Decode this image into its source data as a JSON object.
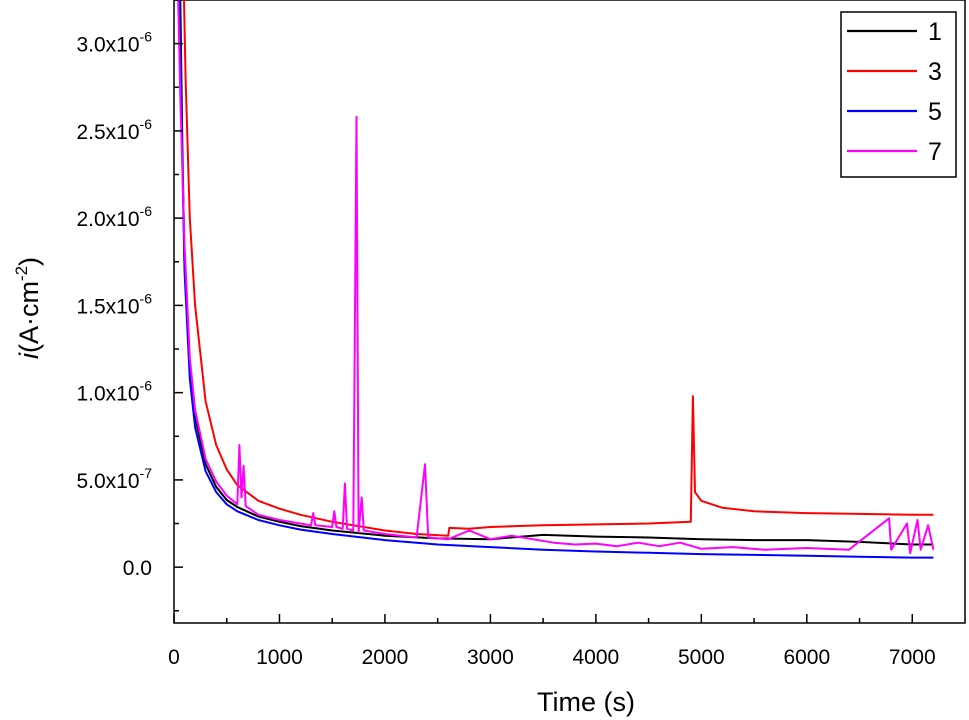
{
  "chart_data": {
    "type": "line",
    "xlabel": "Time (s)",
    "ylabel": {
      "italic": "i",
      "main": "(A·cm",
      "sup": "-2",
      "tail": ")"
    },
    "xlim": [
      0,
      7500
    ],
    "ylim": [
      -3.2e-07,
      3.25e-06
    ],
    "grid": false,
    "legend_position": "top-right",
    "x_ticks": [
      {
        "value": 0,
        "label": "0"
      },
      {
        "value": 1000,
        "label": "1000"
      },
      {
        "value": 2000,
        "label": "2000"
      },
      {
        "value": 3000,
        "label": "3000"
      },
      {
        "value": 4000,
        "label": "4000"
      },
      {
        "value": 5000,
        "label": "5000"
      },
      {
        "value": 6000,
        "label": "6000"
      },
      {
        "value": 7000,
        "label": "7000"
      }
    ],
    "y_ticks": [
      {
        "value": 0,
        "mant": "0.0",
        "exp": ""
      },
      {
        "value": 5e-07,
        "mant": "5.0x10",
        "exp": "-7"
      },
      {
        "value": 1e-06,
        "mant": "1.0x10",
        "exp": "-6"
      },
      {
        "value": 1.5e-06,
        "mant": "1.5x10",
        "exp": "-6"
      },
      {
        "value": 2e-06,
        "mant": "2.0x10",
        "exp": "-6"
      },
      {
        "value": 2.5e-06,
        "mant": "2.5x10",
        "exp": "-6"
      },
      {
        "value": 3e-06,
        "mant": "3.0x10",
        "exp": "-6"
      }
    ],
    "series": [
      {
        "name": "1",
        "color": "#000000",
        "points": [
          [
            60,
            3.25e-06
          ],
          [
            80,
            2.4e-06
          ],
          [
            100,
            1.75e-06
          ],
          [
            150,
            1.15e-06
          ],
          [
            200,
            8.6e-07
          ],
          [
            300,
            5.9e-07
          ],
          [
            400,
            4.6e-07
          ],
          [
            500,
            3.85e-07
          ],
          [
            600,
            3.45e-07
          ],
          [
            800,
            2.9e-07
          ],
          [
            1000,
            2.6e-07
          ],
          [
            1200,
            2.35e-07
          ],
          [
            1500,
            2.1e-07
          ],
          [
            2000,
            1.8e-07
          ],
          [
            2500,
            1.65e-07
          ],
          [
            3000,
            1.6e-07
          ],
          [
            3500,
            1.85e-07
          ],
          [
            4000,
            1.75e-07
          ],
          [
            4500,
            1.7e-07
          ],
          [
            5000,
            1.6e-07
          ],
          [
            5500,
            1.55e-07
          ],
          [
            6000,
            1.55e-07
          ],
          [
            6500,
            1.45e-07
          ],
          [
            7000,
            1.3e-07
          ],
          [
            7200,
            1.3e-07
          ]
        ]
      },
      {
        "name": "3",
        "color": "#ff0000",
        "points": [
          [
            95,
            3.25e-06
          ],
          [
            110,
            2.8e-06
          ],
          [
            150,
            2e-06
          ],
          [
            200,
            1.5e-06
          ],
          [
            300,
            9.5e-07
          ],
          [
            400,
            7e-07
          ],
          [
            500,
            5.6e-07
          ],
          [
            600,
            4.7e-07
          ],
          [
            800,
            3.8e-07
          ],
          [
            1000,
            3.35e-07
          ],
          [
            1200,
            3e-07
          ],
          [
            1500,
            2.6e-07
          ],
          [
            2000,
            2.1e-07
          ],
          [
            2300,
            1.9e-07
          ],
          [
            2600,
            1.8e-07
          ],
          [
            2610,
            2.25e-07
          ],
          [
            2800,
            2.2e-07
          ],
          [
            3000,
            2.3e-07
          ],
          [
            3500,
            2.4e-07
          ],
          [
            4000,
            2.45e-07
          ],
          [
            4500,
            2.5e-07
          ],
          [
            4900,
            2.6e-07
          ],
          [
            4920,
            9.8e-07
          ],
          [
            4940,
            4.3e-07
          ],
          [
            5000,
            3.8e-07
          ],
          [
            5200,
            3.4e-07
          ],
          [
            5500,
            3.2e-07
          ],
          [
            6000,
            3.1e-07
          ],
          [
            6500,
            3.05e-07
          ],
          [
            7000,
            3e-07
          ],
          [
            7200,
            3e-07
          ]
        ]
      },
      {
        "name": "5",
        "color": "#0000ff",
        "points": [
          [
            50,
            3.25e-06
          ],
          [
            70,
            2.6e-06
          ],
          [
            100,
            1.7e-06
          ],
          [
            150,
            1.08e-06
          ],
          [
            200,
            8e-07
          ],
          [
            300,
            5.5e-07
          ],
          [
            400,
            4.3e-07
          ],
          [
            500,
            3.6e-07
          ],
          [
            600,
            3.2e-07
          ],
          [
            800,
            2.7e-07
          ],
          [
            1000,
            2.4e-07
          ],
          [
            1200,
            2.15e-07
          ],
          [
            1500,
            1.9e-07
          ],
          [
            2000,
            1.55e-07
          ],
          [
            2500,
            1.3e-07
          ],
          [
            3000,
            1.15e-07
          ],
          [
            3500,
            1e-07
          ],
          [
            4000,
            9e-08
          ],
          [
            4500,
            8.2e-08
          ],
          [
            5000,
            7.5e-08
          ],
          [
            5500,
            7e-08
          ],
          [
            6000,
            6.5e-08
          ],
          [
            6500,
            6e-08
          ],
          [
            7000,
            5.5e-08
          ],
          [
            7200,
            5.5e-08
          ]
        ]
      },
      {
        "name": "7",
        "color": "#ff00ff",
        "points": [
          [
            40,
            3.25e-06
          ],
          [
            60,
            2.7e-06
          ],
          [
            100,
            1.85e-06
          ],
          [
            150,
            1.2e-06
          ],
          [
            200,
            9e-07
          ],
          [
            300,
            6.2e-07
          ],
          [
            400,
            4.9e-07
          ],
          [
            500,
            4.1e-07
          ],
          [
            600,
            3.6e-07
          ],
          [
            620,
            7e-07
          ],
          [
            640,
            4e-07
          ],
          [
            660,
            5.8e-07
          ],
          [
            680,
            3.5e-07
          ],
          [
            800,
            3e-07
          ],
          [
            1000,
            2.7e-07
          ],
          [
            1300,
            2.4e-07
          ],
          [
            1320,
            3.1e-07
          ],
          [
            1340,
            2.4e-07
          ],
          [
            1500,
            2.3e-07
          ],
          [
            1520,
            3.2e-07
          ],
          [
            1540,
            2.3e-07
          ],
          [
            1600,
            2.2e-07
          ],
          [
            1620,
            4.8e-07
          ],
          [
            1640,
            2.2e-07
          ],
          [
            1700,
            2.1e-07
          ],
          [
            1730,
            2.58e-06
          ],
          [
            1750,
            2e-07
          ],
          [
            1780,
            4e-07
          ],
          [
            1800,
            2.1e-07
          ],
          [
            2000,
            1.9e-07
          ],
          [
            2300,
            1.7e-07
          ],
          [
            2380,
            5.9e-07
          ],
          [
            2410,
            1.7e-07
          ],
          [
            2600,
            1.6e-07
          ],
          [
            2800,
            2.1e-07
          ],
          [
            3000,
            1.6e-07
          ],
          [
            3200,
            1.8e-07
          ],
          [
            3400,
            1.6e-07
          ],
          [
            3600,
            1.4e-07
          ],
          [
            3800,
            1.3e-07
          ],
          [
            4000,
            1.35e-07
          ],
          [
            4200,
            1.2e-07
          ],
          [
            4400,
            1.4e-07
          ],
          [
            4600,
            1.2e-07
          ],
          [
            4800,
            1.4e-07
          ],
          [
            5000,
            1.05e-07
          ],
          [
            5300,
            1.15e-07
          ],
          [
            5600,
            1e-07
          ],
          [
            6000,
            1.1e-07
          ],
          [
            6400,
            1e-07
          ],
          [
            6780,
            2.8e-07
          ],
          [
            6800,
            1e-07
          ],
          [
            6950,
            2.5e-07
          ],
          [
            6980,
            8e-08
          ],
          [
            7050,
            2.7e-07
          ],
          [
            7080,
            1e-07
          ],
          [
            7150,
            2.4e-07
          ],
          [
            7200,
            1e-07
          ]
        ]
      }
    ]
  }
}
